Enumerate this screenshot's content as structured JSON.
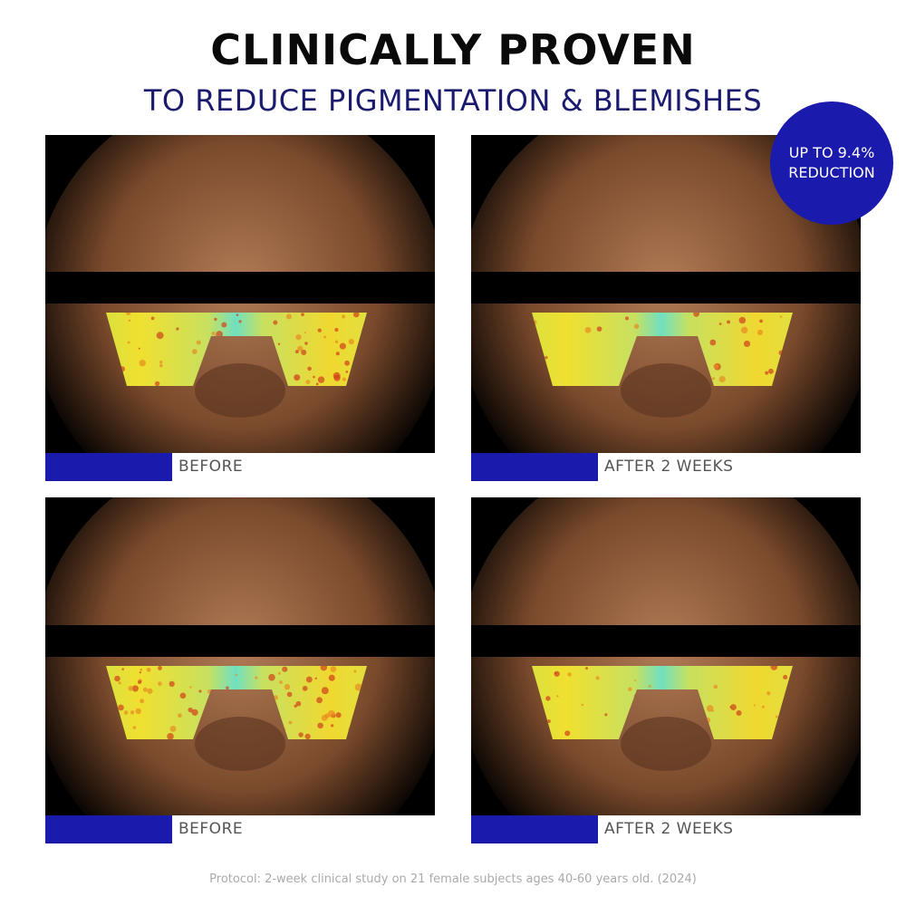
{
  "header": {
    "title": "CLINICALLY PROVEN",
    "subtitle": "TO REDUCE PIGMENTATION & BLEMISHES"
  },
  "badge": {
    "line1": "UP TO 9.4%",
    "line2": "REDUCTION"
  },
  "panels": [
    {
      "label": "BEFORE"
    },
    {
      "label": "AFTER 2 WEEKS"
    },
    {
      "label": "BEFORE"
    },
    {
      "label": "AFTER 2 WEEKS"
    }
  ],
  "footer": "Protocol: 2-week clinical study on 21 female subjects ages 40-60 years old. (2024)",
  "colors": {
    "accent": "#1a1aad",
    "subtitle": "#1a1a6e"
  }
}
